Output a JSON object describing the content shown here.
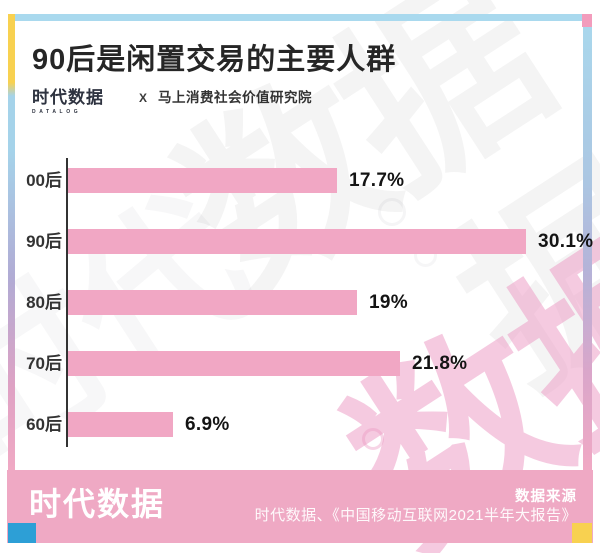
{
  "header": {
    "title": "90后是闲置交易的主要人群",
    "logo_text": "时代数据",
    "logo_subtext": "DATALOG",
    "separator": "X",
    "partner": "马上消费社会价值研究院"
  },
  "chart_data": {
    "type": "bar",
    "orientation": "horizontal",
    "title": "90后是闲置交易的主要人群",
    "categories": [
      "00后",
      "90后",
      "80后",
      "70后",
      "60后"
    ],
    "values": [
      17.7,
      30.1,
      19,
      21.8,
      6.9
    ],
    "value_labels": [
      "17.7%",
      "30.1%",
      "19%",
      "21.8%",
      "6.9%"
    ],
    "xlabel": "",
    "ylabel": "",
    "xlim": [
      0,
      32
    ],
    "grid": false,
    "legend": false,
    "bar_color": "#F1A7C4"
  },
  "footer": {
    "logo_text": "时代数据",
    "source_label": "数据来源",
    "source_text": "时代数据、《中国移动互联网2021半年大报告》"
  },
  "colors": {
    "frame_top_blue": "#A9D9EE",
    "frame_yellow": "#F8D150",
    "frame_corner_pink": "#F29CBC",
    "footer_band_pink": "#EFA9C4",
    "bottom_blue_square": "#2D9FD6",
    "bottom_yellow_square": "#F8D150"
  },
  "watermark": {
    "top_text": "数据",
    "left_text": "时代",
    "bottom_gray_text": "据",
    "bottom_pink_text": "数据"
  }
}
